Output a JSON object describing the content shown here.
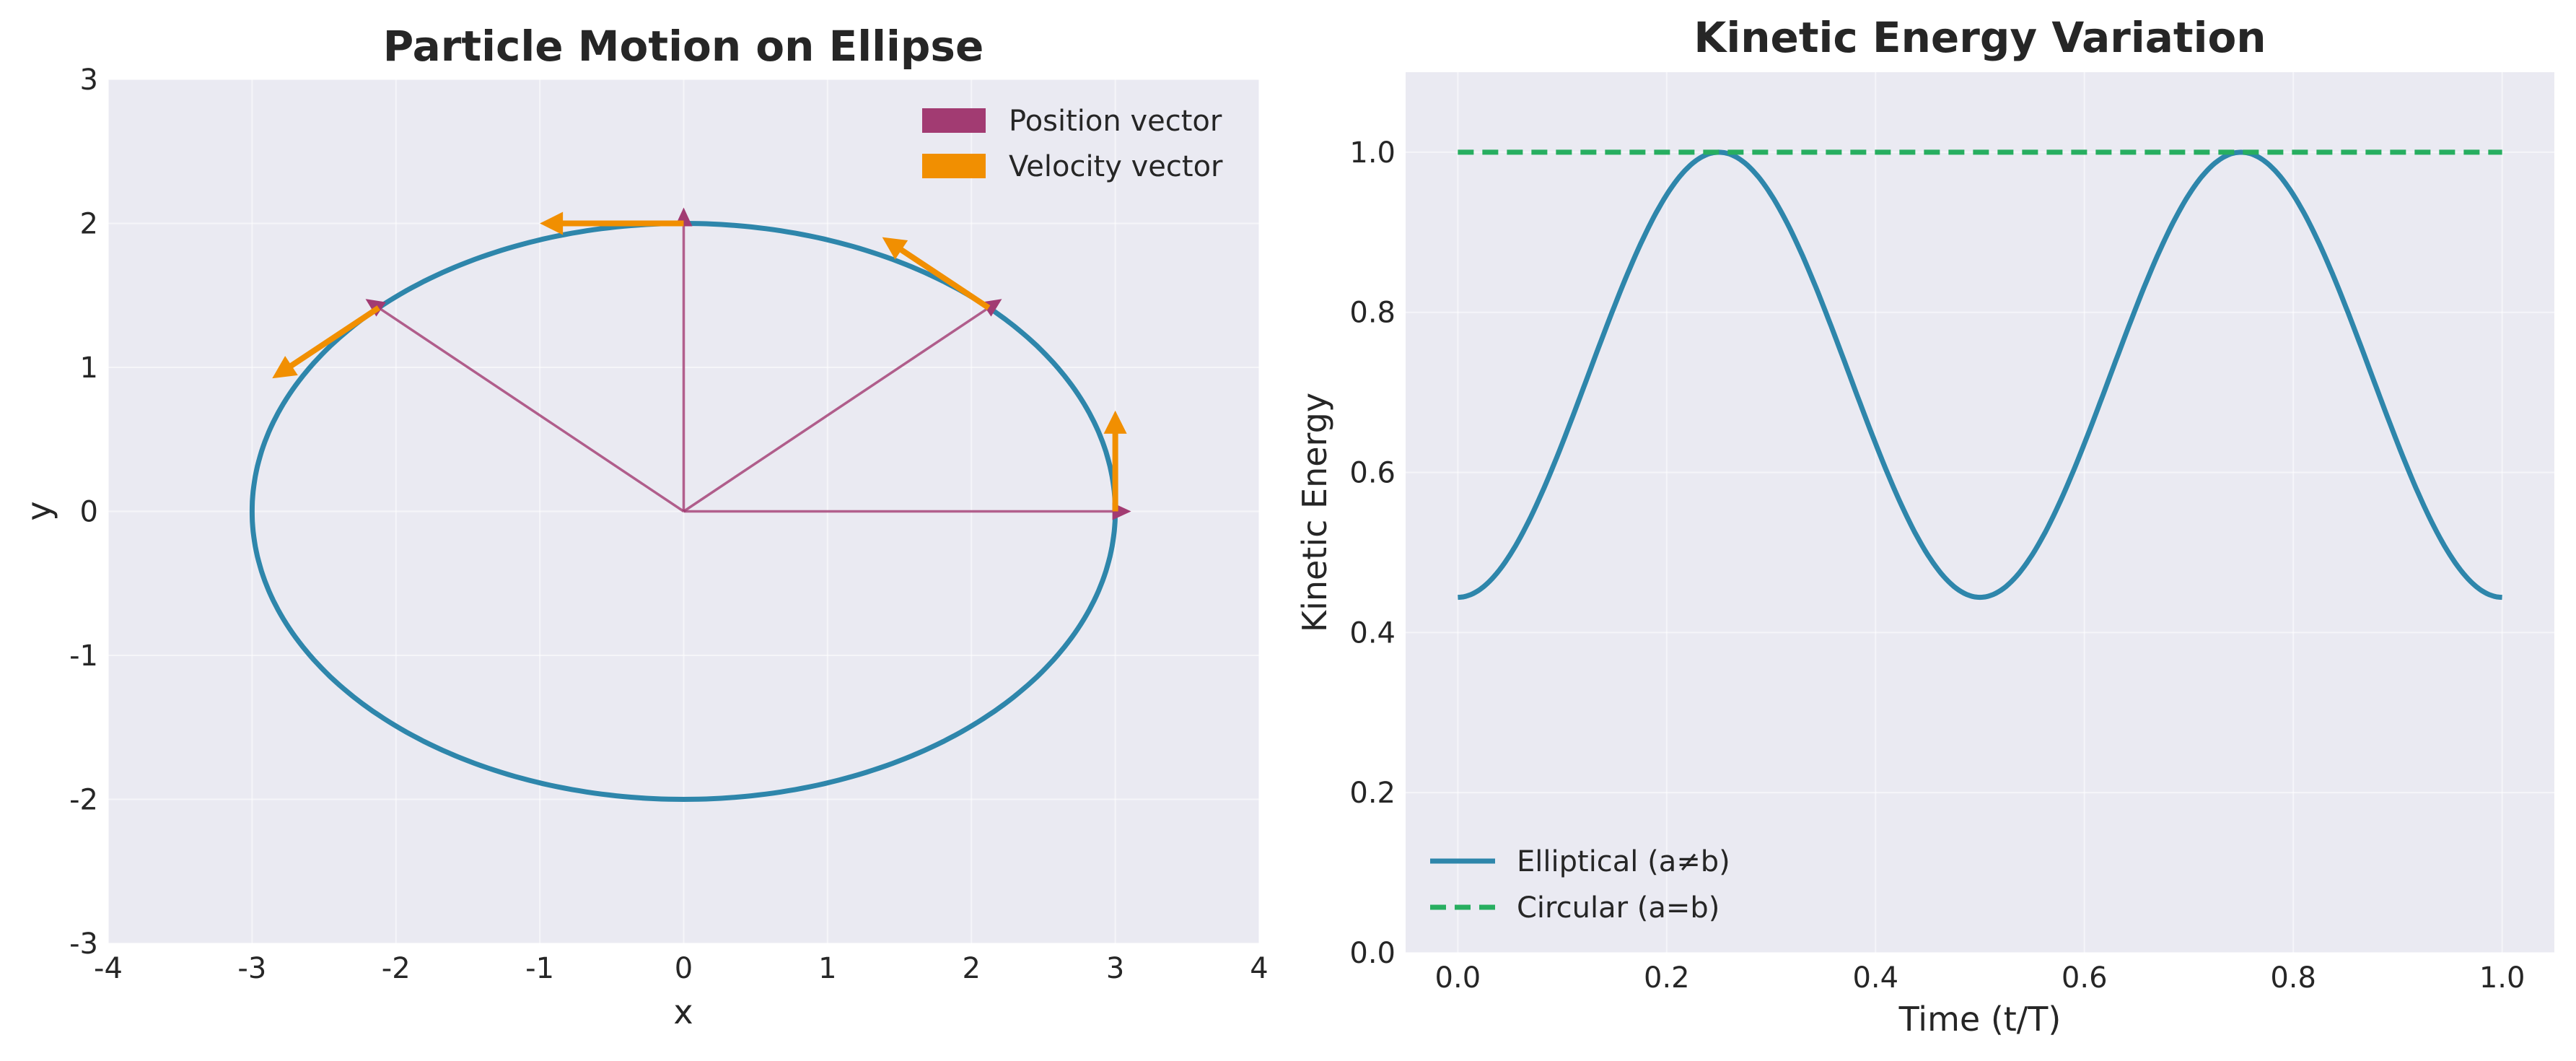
{
  "colors": {
    "background": "#eaeaf2",
    "ellipse": "#2e86ab",
    "position": "#a23b72",
    "velocity": "#f18f01",
    "circular": "#27ae60"
  },
  "chart_data": [
    {
      "type": "line",
      "title": "Particle Motion on Ellipse",
      "xlabel": "x",
      "ylabel": "y",
      "xlim": [
        -4,
        4
      ],
      "ylim": [
        -3,
        3
      ],
      "xticks": [
        "-4",
        "-3",
        "-2",
        "-1",
        "0",
        "1",
        "2",
        "3",
        "4"
      ],
      "yticks": [
        "-3",
        "-2",
        "-1",
        "0",
        "1",
        "2",
        "3"
      ],
      "grid": true,
      "legend_position": "top-right",
      "ellipse": {
        "a": 3,
        "b": 2
      },
      "points": [
        {
          "x": 3.0,
          "y": 0.0,
          "vx": 0.0,
          "vy": 0.7
        },
        {
          "x": 2.12,
          "y": 1.414,
          "vx": -0.74,
          "vy": 0.49
        },
        {
          "x": 0.0,
          "y": 2.0,
          "vx": -1.0,
          "vy": 0.0
        },
        {
          "x": -2.12,
          "y": 1.414,
          "vx": -0.74,
          "vy": -0.49
        }
      ],
      "legend": [
        "Position vector",
        "Velocity vector"
      ]
    },
    {
      "type": "line",
      "title": "Kinetic Energy Variation",
      "xlabel": "Time (t/T)",
      "ylabel": "Kinetic Energy",
      "xlim": [
        -0.05,
        1.05
      ],
      "ylim": [
        0.0,
        1.1
      ],
      "xticks": [
        "0.0",
        "0.2",
        "0.4",
        "0.6",
        "0.8",
        "1.0"
      ],
      "yticks": [
        "0.0",
        "0.2",
        "0.4",
        "0.6",
        "0.8",
        "1.0"
      ],
      "grid": true,
      "legend_position": "bottom-left",
      "series": [
        {
          "name": "Elliptical (a≠b)",
          "x": [
            0.0,
            0.05,
            0.1,
            0.15,
            0.2,
            0.25,
            0.3,
            0.35,
            0.4,
            0.45,
            0.5,
            0.55,
            0.6,
            0.65,
            0.7,
            0.75,
            0.8,
            0.85,
            0.9,
            0.95,
            1.0
          ],
          "y": [
            0.444,
            0.497,
            0.636,
            0.808,
            0.947,
            1.0,
            0.947,
            0.808,
            0.636,
            0.497,
            0.444,
            0.497,
            0.636,
            0.808,
            0.947,
            1.0,
            0.947,
            0.808,
            0.636,
            0.497,
            0.444
          ]
        },
        {
          "name": "Circular (a=b)",
          "x": [
            0.0,
            1.0
          ],
          "y": [
            1.0,
            1.0
          ]
        }
      ]
    }
  ]
}
